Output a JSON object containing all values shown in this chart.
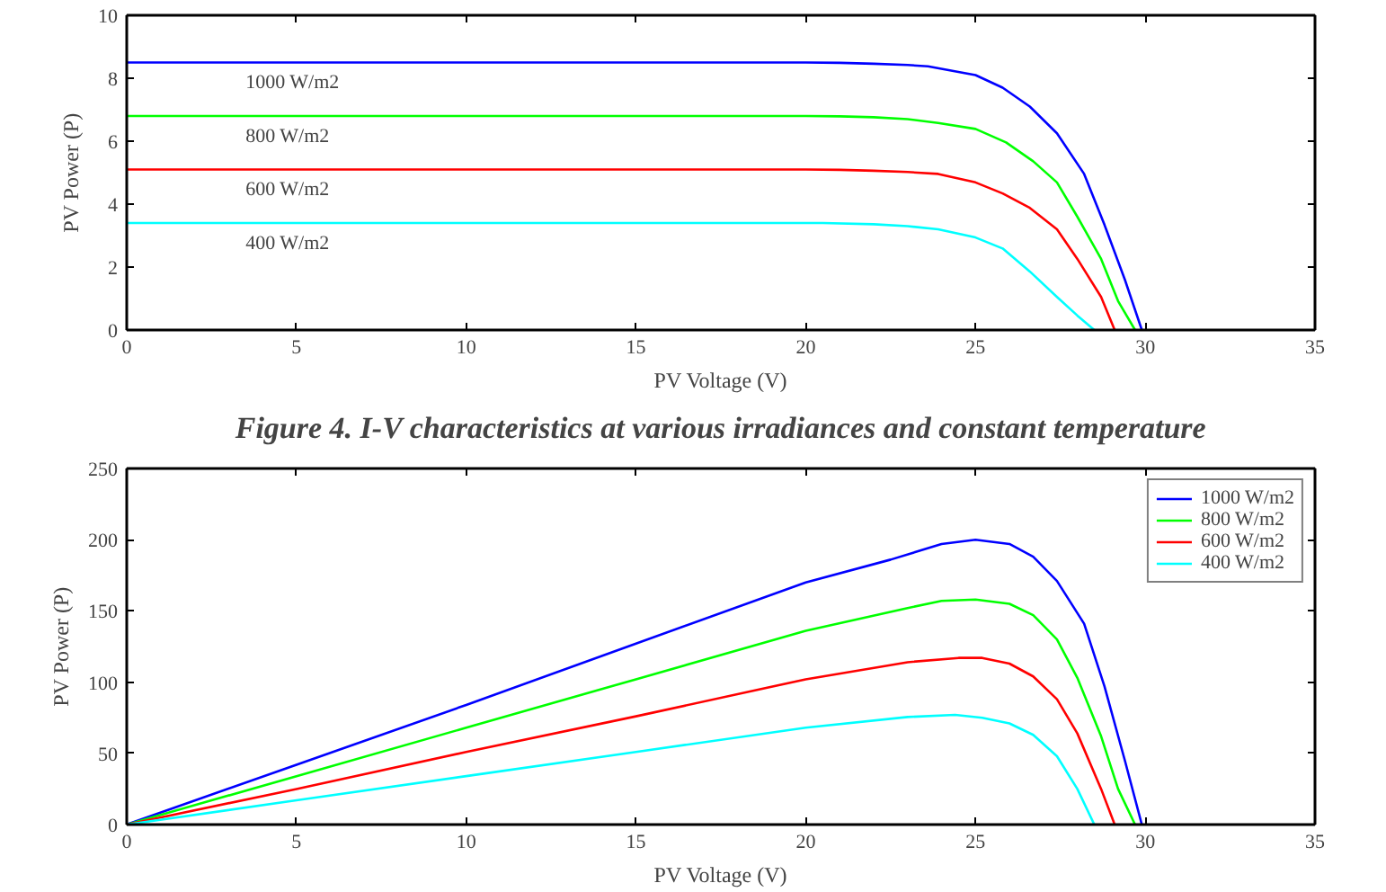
{
  "chart_data": [
    {
      "type": "line",
      "xlabel": "PV Voltage (V)",
      "ylabel": "PV Power (P)",
      "xlim": [
        0,
        35
      ],
      "xticks": [
        0,
        5,
        10,
        15,
        20,
        25,
        30,
        35
      ],
      "ylim": [
        0,
        10
      ],
      "yticks": [
        0,
        2,
        4,
        6,
        8,
        10
      ],
      "grid": false,
      "legend": false,
      "annotations": [
        "Figure 4. I-V characteristics at various irradiances and constant temperature"
      ],
      "series": [
        {
          "name": "1000 W/m2",
          "color": "#0000ff",
          "x": [
            0,
            5,
            10,
            15,
            20,
            21,
            22,
            23,
            23.6,
            25,
            25.8,
            26.6,
            27.4,
            28.2,
            28.8,
            29.4,
            29.9
          ],
          "values": [
            8.5,
            8.5,
            8.5,
            8.5,
            8.5,
            8.49,
            8.46,
            8.42,
            8.38,
            8.1,
            7.7,
            7.1,
            6.25,
            4.96,
            3.34,
            1.6,
            0
          ]
        },
        {
          "name": "800 W/m2",
          "color": "#00ff00",
          "x": [
            0,
            5,
            10,
            15,
            20,
            21,
            22,
            23,
            23.9,
            25,
            25.9,
            26.7,
            27.4,
            28,
            28.7,
            29.2,
            29.7
          ],
          "values": [
            6.8,
            6.8,
            6.8,
            6.8,
            6.8,
            6.79,
            6.76,
            6.7,
            6.58,
            6.39,
            5.96,
            5.36,
            4.69,
            3.6,
            2.26,
            0.92,
            0
          ]
        },
        {
          "name": "600 W/m2",
          "color": "#ff0000",
          "x": [
            0,
            5,
            10,
            15,
            20,
            21,
            22,
            23,
            23.9,
            25,
            25.8,
            26.6,
            27.4,
            28,
            28.7,
            29.1
          ],
          "values": [
            5.1,
            5.1,
            5.1,
            5.1,
            5.1,
            5.09,
            5.06,
            5.02,
            4.96,
            4.69,
            4.34,
            3.88,
            3.2,
            2.26,
            1.05,
            0
          ]
        },
        {
          "name": "400 W/m2",
          "color": "#00ffff",
          "x": [
            0,
            5,
            10,
            15,
            20,
            20.5,
            22,
            23,
            23.9,
            25,
            25.8,
            26.6,
            27.4,
            28,
            28.5
          ],
          "values": [
            3.4,
            3.4,
            3.4,
            3.4,
            3.4,
            3.4,
            3.36,
            3.3,
            3.2,
            2.94,
            2.59,
            1.86,
            1.05,
            0.46,
            0
          ]
        }
      ]
    },
    {
      "type": "line",
      "xlabel": "PV Voltage (V)",
      "ylabel": "PV Power (P)",
      "xlim": [
        0,
        35
      ],
      "xticks": [
        0,
        5,
        10,
        15,
        20,
        25,
        30,
        35
      ],
      "ylim": [
        0,
        250
      ],
      "yticks": [
        0,
        50,
        100,
        150,
        200,
        250
      ],
      "grid": false,
      "legend": "top right",
      "series": [
        {
          "name": "1000 W/m2",
          "color": "#0000ff",
          "x": [
            0,
            5,
            10,
            15,
            20,
            22.5,
            24,
            25,
            26,
            26.7,
            27.4,
            28.2,
            28.8,
            29.4,
            29.9
          ],
          "values": [
            0,
            42,
            84,
            127,
            170,
            186,
            197,
            200,
            197,
            188,
            171,
            141,
            97,
            45,
            0
          ]
        },
        {
          "name": "800 W/m2",
          "color": "#00ff00",
          "x": [
            0,
            5,
            10,
            15,
            20,
            23,
            24,
            25,
            26,
            26.7,
            27.4,
            28,
            28.7,
            29.2,
            29.7
          ],
          "values": [
            0,
            34,
            68,
            102,
            136,
            152,
            157,
            158,
            155,
            147,
            130,
            103,
            62,
            25,
            0
          ]
        },
        {
          "name": "600 W/m2",
          "color": "#ff0000",
          "x": [
            0,
            5,
            10,
            15,
            20,
            23,
            24.5,
            25.2,
            26,
            26.7,
            27.4,
            28,
            28.7,
            29.1
          ],
          "values": [
            0,
            25,
            51,
            76,
            102,
            114,
            117,
            117,
            113,
            104,
            88,
            64,
            25,
            0
          ]
        },
        {
          "name": "400 W/m2",
          "color": "#00ffff",
          "x": [
            0,
            5,
            10,
            15,
            20,
            23,
            24.4,
            25.2,
            26,
            26.7,
            27.4,
            28,
            28.5
          ],
          "values": [
            0,
            17,
            34,
            51,
            68,
            75.5,
            77,
            75,
            71,
            63,
            48,
            25,
            0
          ]
        }
      ]
    }
  ]
}
